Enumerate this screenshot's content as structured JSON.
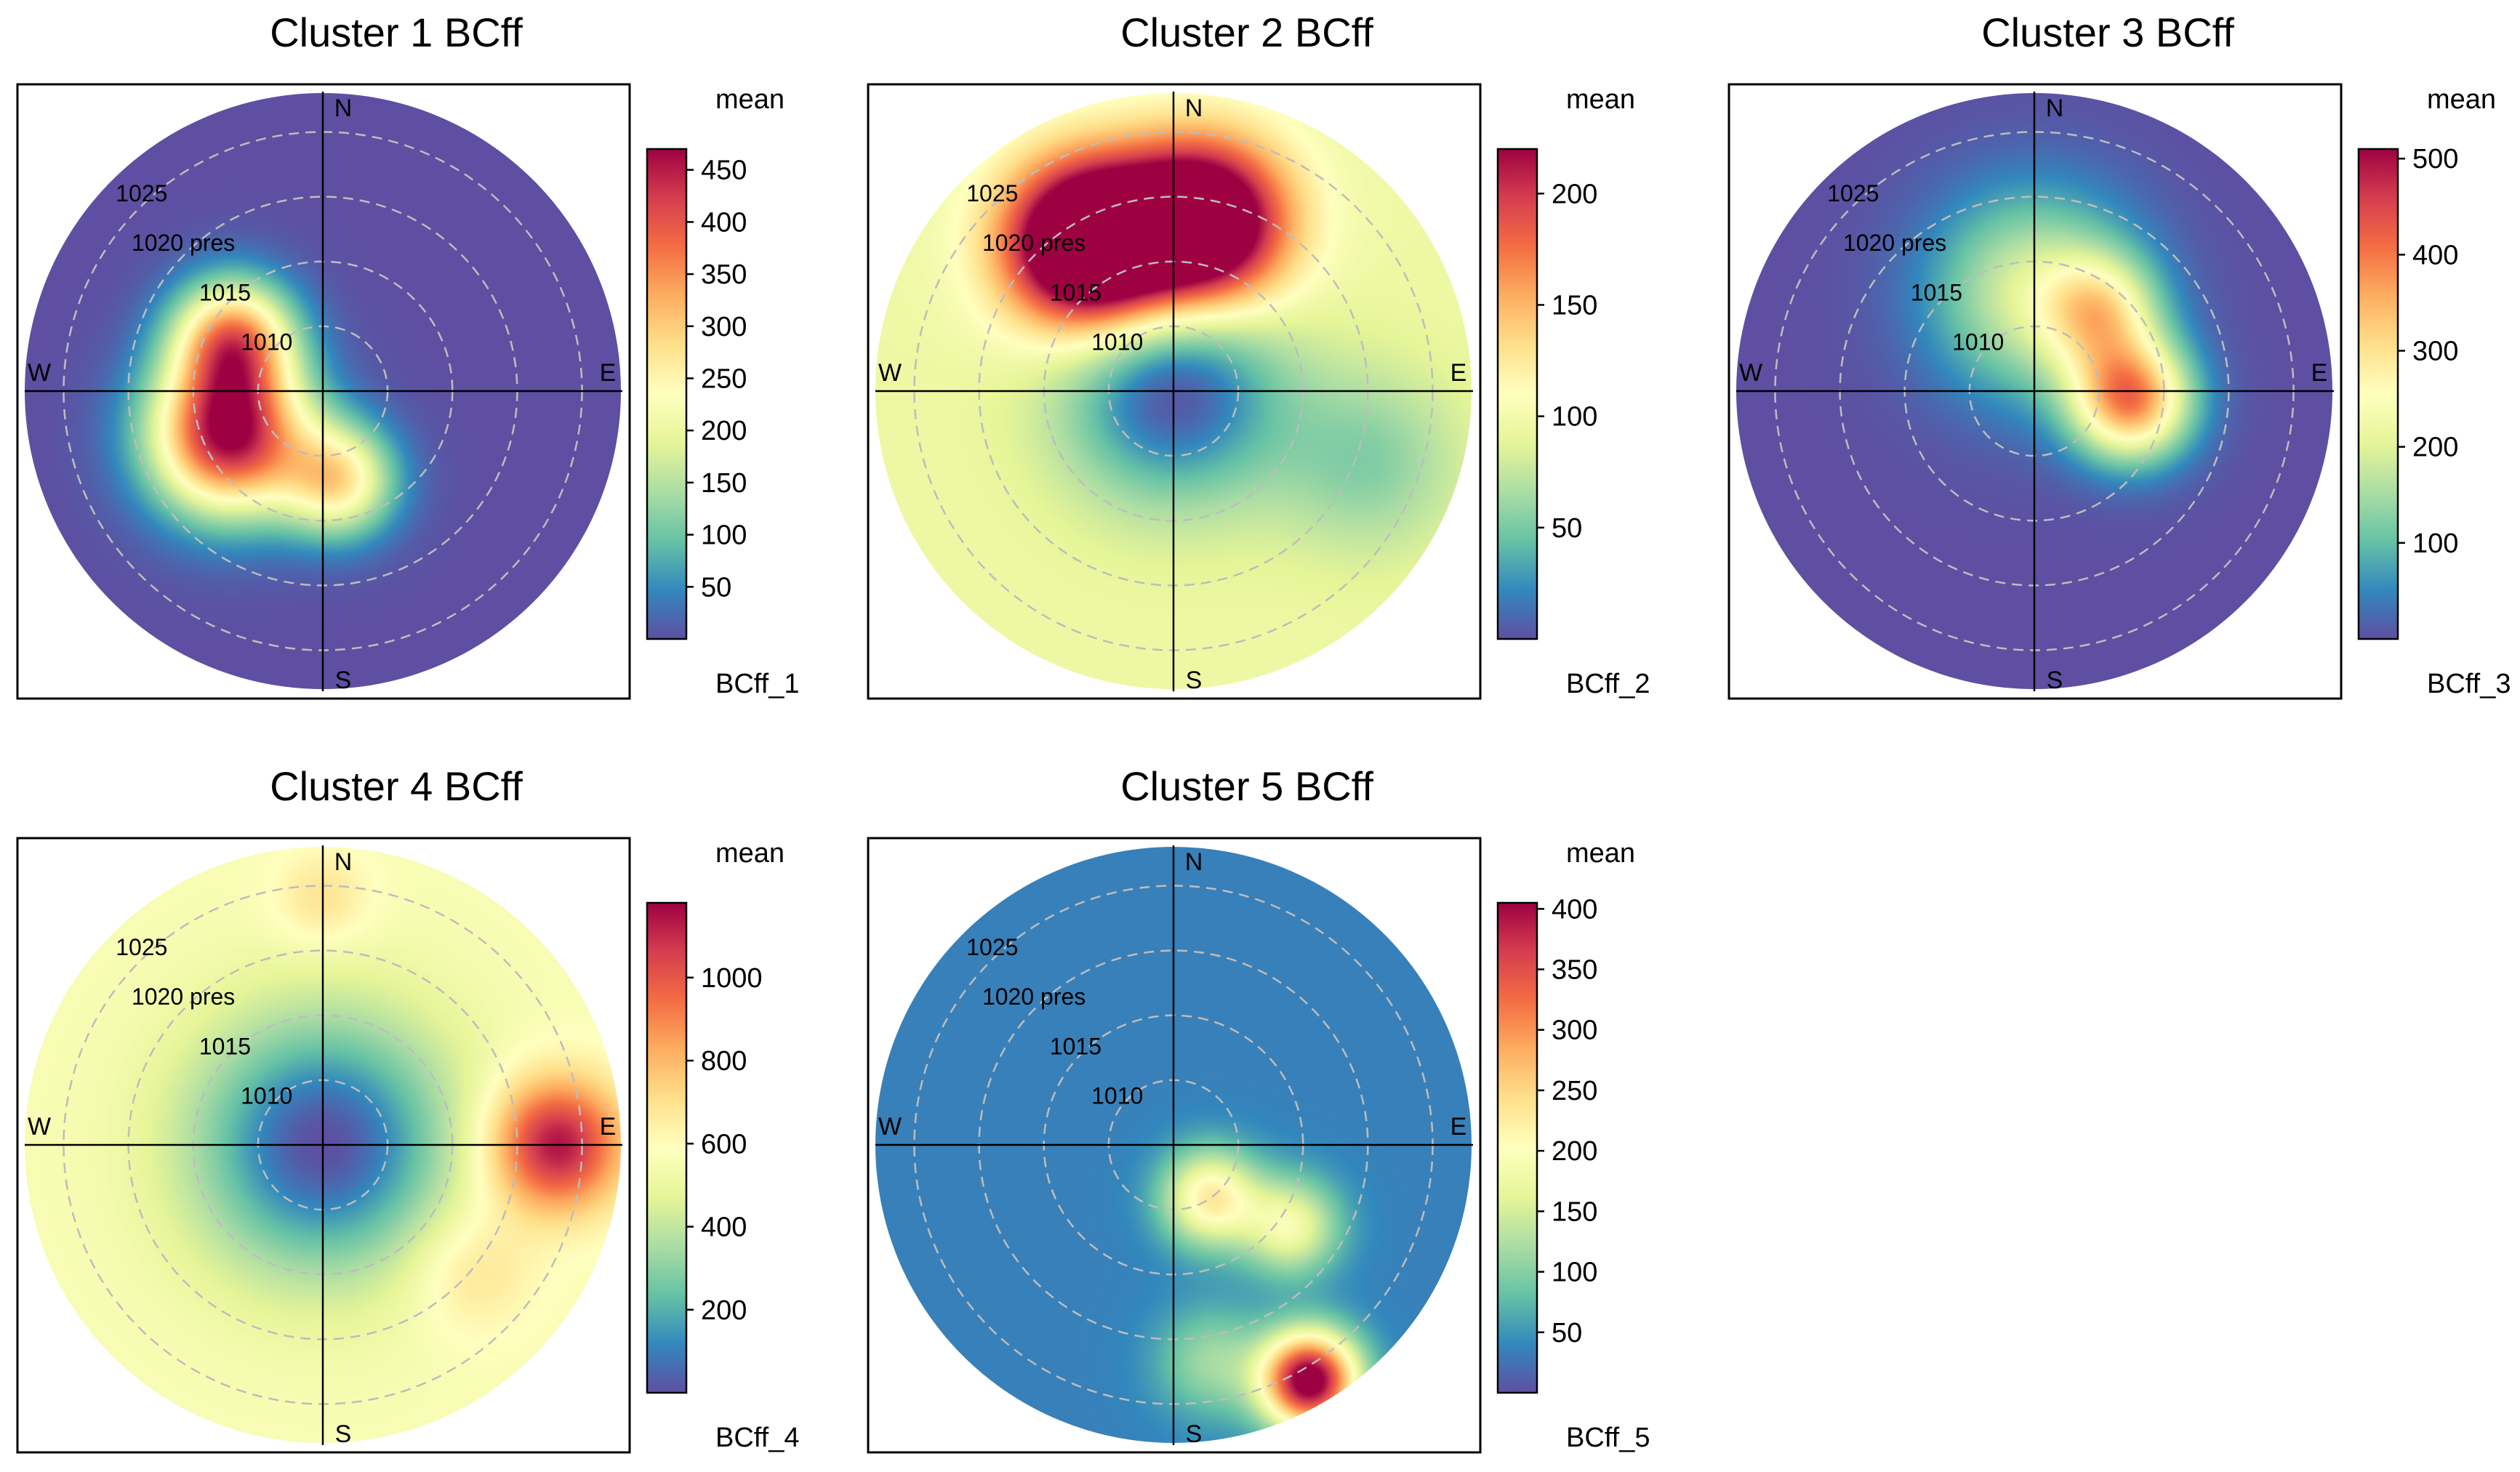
{
  "colors": {
    "palette": [
      "#5E4FA2",
      "#3288BD",
      "#66C2A5",
      "#ABDDA4",
      "#E6F598",
      "#FFFFBF",
      "#FEE08B",
      "#FDAE61",
      "#F46D43",
      "#D53E4F",
      "#9E0142"
    ],
    "grid": "#bdbdbd",
    "axis": "#000000",
    "frame": "#000000"
  },
  "chart_data": [
    {
      "type": "heatmap",
      "subtype": "polar-pressure-plot",
      "title": "Cluster 1 BCff",
      "pollutant": "BCff_1",
      "statistic": "mean",
      "compass": [
        "N",
        "E",
        "S",
        "W"
      ],
      "pressure_rings": [
        1010,
        1015,
        1020,
        1025
      ],
      "ring_labels": [
        "1010",
        "1015",
        "1020 pres",
        "1025"
      ],
      "pressure_center": 1005,
      "pressure_max": 1028,
      "color_range": [
        0,
        470
      ],
      "colorbar_ticks": [
        50,
        100,
        150,
        200,
        250,
        300,
        350,
        400,
        450
      ],
      "colorbar_tick_labels": [
        "50",
        "100",
        "150",
        "200",
        "250",
        "300",
        "350",
        "400",
        "450"
      ],
      "background_value": 0,
      "hotspots": [
        {
          "bearing_deg": 245,
          "pressure": 1013,
          "value": 470,
          "spread_hpa": 4.2
        },
        {
          "bearing_deg": 300,
          "pressure": 1013,
          "value": 330,
          "spread_hpa": 3.2
        },
        {
          "bearing_deg": 170,
          "pressure": 1012,
          "value": 260,
          "spread_hpa": 3.0
        }
      ]
    },
    {
      "type": "heatmap",
      "subtype": "polar-pressure-plot",
      "title": "Cluster 2 BCff",
      "pollutant": "BCff_2",
      "statistic": "mean",
      "compass": [
        "N",
        "E",
        "S",
        "W"
      ],
      "pressure_rings": [
        1010,
        1015,
        1020,
        1025
      ],
      "ring_labels": [
        "1010",
        "1015",
        "1020 pres",
        "1025"
      ],
      "pressure_center": 1005,
      "pressure_max": 1028,
      "color_range": [
        0,
        220
      ],
      "colorbar_ticks": [
        50,
        100,
        150,
        200
      ],
      "colorbar_tick_labels": [
        "50",
        "100",
        "150",
        "200"
      ],
      "background_value": 95,
      "hotspots": [
        {
          "bearing_deg": 330,
          "pressure": 1018,
          "value": 225,
          "spread_hpa": 4.5
        },
        {
          "bearing_deg": 10,
          "pressure": 1018,
          "value": 200,
          "spread_hpa": 4.5
        },
        {
          "bearing_deg": 0,
          "pressure": 1005,
          "value": -95,
          "spread_hpa": 6.0
        },
        {
          "bearing_deg": 110,
          "pressure": 1021,
          "value": -40,
          "spread_hpa": 5.0
        }
      ]
    },
    {
      "type": "heatmap",
      "subtype": "polar-pressure-plot",
      "title": "Cluster 3 BCff",
      "pollutant": "BCff_3",
      "statistic": "mean",
      "compass": [
        "N",
        "E",
        "S",
        "W"
      ],
      "pressure_rings": [
        1010,
        1015,
        1020,
        1025
      ],
      "ring_labels": [
        "1010",
        "1015",
        "1020 pres",
        "1025"
      ],
      "pressure_center": 1005,
      "pressure_max": 1028,
      "color_range": [
        0,
        510
      ],
      "colorbar_ticks": [
        100,
        200,
        300,
        400,
        500
      ],
      "colorbar_tick_labels": [
        "100",
        "200",
        "300",
        "400",
        "500"
      ],
      "background_value": 0,
      "hotspots": [
        {
          "bearing_deg": 0,
          "pressure": 1012.5,
          "value": 200,
          "spread_hpa": 5.5
        },
        {
          "bearing_deg": 95,
          "pressure": 1012.5,
          "value": 380,
          "spread_hpa": 3.2
        },
        {
          "bearing_deg": 40,
          "pressure": 1013,
          "value": 200,
          "spread_hpa": 3.0
        }
      ]
    },
    {
      "type": "heatmap",
      "subtype": "polar-pressure-plot",
      "title": "Cluster 4 BCff",
      "pollutant": "BCff_4",
      "statistic": "mean",
      "compass": [
        "N",
        "E",
        "S",
        "W"
      ],
      "pressure_rings": [
        1010,
        1015,
        1020,
        1025
      ],
      "ring_labels": [
        "1010",
        "1015",
        "1020 pres",
        "1025"
      ],
      "pressure_center": 1005,
      "pressure_max": 1028,
      "color_range": [
        0,
        1180
      ],
      "colorbar_ticks": [
        200,
        400,
        600,
        800,
        1000
      ],
      "colorbar_tick_labels": [
        "200",
        "400",
        "600",
        "800",
        "1000"
      ],
      "background_value": 560,
      "hotspots": [
        {
          "bearing_deg": 0,
          "pressure": 1005,
          "value": -560,
          "spread_hpa": 7.0
        },
        {
          "bearing_deg": 90,
          "pressure": 1023,
          "value": 600,
          "spread_hpa": 3.6
        },
        {
          "bearing_deg": 0,
          "pressure": 1024,
          "value": 140,
          "spread_hpa": 2.6
        },
        {
          "bearing_deg": 130,
          "pressure": 1020,
          "value": 150,
          "spread_hpa": 3.5
        }
      ]
    },
    {
      "type": "heatmap",
      "subtype": "polar-pressure-plot",
      "title": "Cluster 5 BCff",
      "pollutant": "BCff_5",
      "statistic": "mean",
      "compass": [
        "N",
        "E",
        "S",
        "W"
      ],
      "pressure_rings": [
        1010,
        1015,
        1020,
        1025
      ],
      "ring_labels": [
        "1010",
        "1015",
        "1020 pres",
        "1025"
      ],
      "pressure_center": 1005,
      "pressure_max": 1028,
      "color_range": [
        0,
        405
      ],
      "colorbar_ticks": [
        50,
        100,
        150,
        200,
        250,
        300,
        350,
        400
      ],
      "colorbar_tick_labels": [
        "50",
        "100",
        "150",
        "200",
        "250",
        "300",
        "350",
        "400"
      ],
      "background_value": 35,
      "hotspots": [
        {
          "bearing_deg": 150,
          "pressure": 1026,
          "value": 400,
          "spread_hpa": 2.6
        },
        {
          "bearing_deg": 145,
          "pressure": 1010,
          "value": 190,
          "spread_hpa": 2.6
        },
        {
          "bearing_deg": 125,
          "pressure": 1016,
          "value": 150,
          "spread_hpa": 2.6
        },
        {
          "bearing_deg": 170,
          "pressure": 1022,
          "value": 80,
          "spread_hpa": 3.0
        }
      ]
    }
  ]
}
